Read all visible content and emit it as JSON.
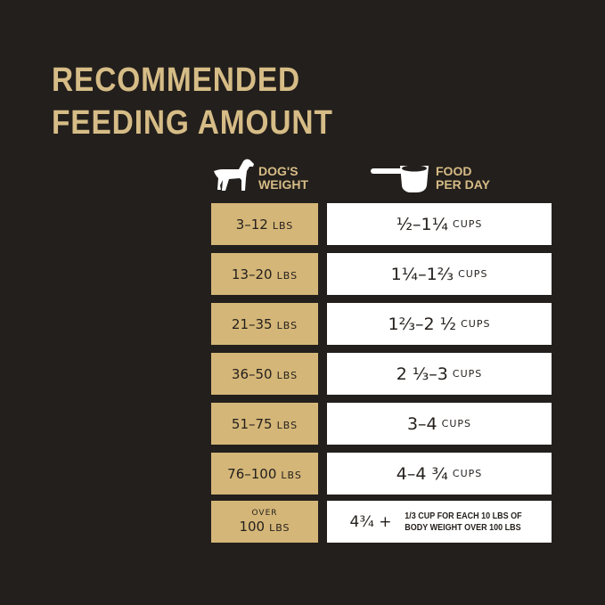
{
  "title": [
    "RECOMMENDED",
    "FEEDING AMOUNT"
  ],
  "headers": {
    "weight": [
      "DOG'S",
      "WEIGHT"
    ],
    "food": [
      "FOOD",
      "PER DAY"
    ],
    "weight_icon": "dog-icon",
    "food_icon": "measuring-cup-icon"
  },
  "rows": [
    {
      "weight": "3–12",
      "unit": "LBS",
      "food": "½–1¼",
      "food_unit": "CUPS"
    },
    {
      "weight": "13–20",
      "unit": "LBS",
      "food": "1¼–1⅔",
      "food_unit": "CUPS"
    },
    {
      "weight": "21–35",
      "unit": "LBS",
      "food": "1⅔–2 ½",
      "food_unit": "CUPS"
    },
    {
      "weight": "36–50",
      "unit": "LBS",
      "food": "2 ⅓–3",
      "food_unit": "CUPS"
    },
    {
      "weight": "51–75",
      "unit": "LBS",
      "food": "3–4",
      "food_unit": "CUPS"
    },
    {
      "weight": "76–100",
      "unit": "LBS",
      "food": "4–4 ¾",
      "food_unit": "CUPS"
    }
  ],
  "last_row": {
    "prefix": "OVER",
    "weight": "100",
    "unit": "LBS",
    "food": "4¾ +",
    "note": [
      "1/3 CUP FOR EACH 10 LBS OF",
      "BODY WEIGHT OVER 100 LBS"
    ]
  },
  "colors": {
    "background": "#231f1c",
    "gold": "#d4b678",
    "white": "#ffffff"
  }
}
